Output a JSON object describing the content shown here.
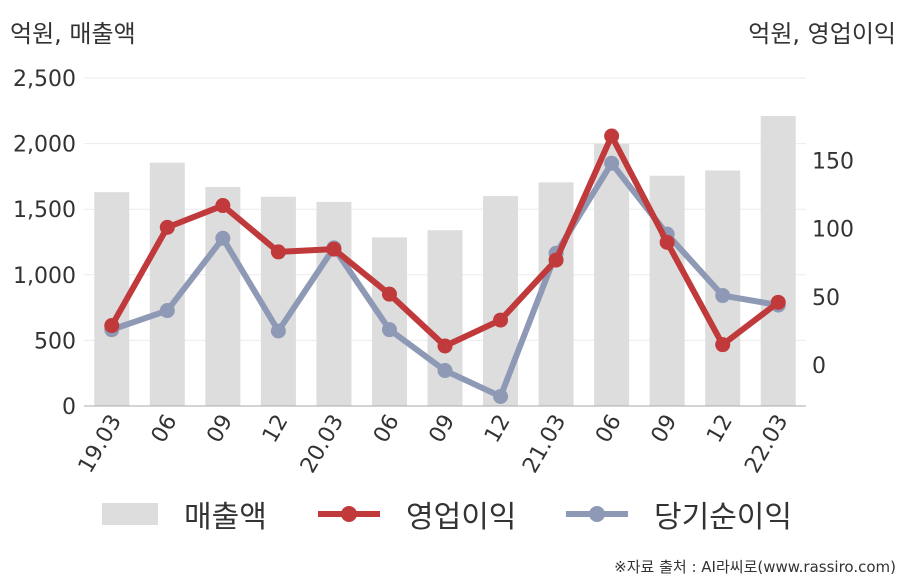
{
  "chart_data": {
    "type": "bar+line",
    "categories": [
      "19.03",
      "06",
      "09",
      "12",
      "20.03",
      "06",
      "09",
      "12",
      "21.03",
      "06",
      "09",
      "12",
      "22.03"
    ],
    "y_left": {
      "unit_label": "억원, 매출액",
      "ticks": [
        "0",
        "500",
        "1,000",
        "1,500",
        "2,000",
        "2,500"
      ],
      "range": [
        0,
        2500
      ]
    },
    "y_right": {
      "unit_label": "억원, 영업이익",
      "ticks": [
        "0",
        "50",
        "100",
        "150"
      ],
      "range": [
        -30,
        190
      ]
    },
    "series": [
      {
        "name": "매출액",
        "kind": "bar",
        "axis": "left",
        "color": "#dddddd",
        "values": [
          1630,
          1855,
          1670,
          1595,
          1555,
          1285,
          1340,
          1600,
          1705,
          2000,
          1755,
          1795,
          2210
        ]
      },
      {
        "name": "영업이익",
        "kind": "line",
        "axis": "right",
        "color": "#c0393b",
        "values": [
          29,
          101,
          117,
          83,
          85,
          52,
          14,
          33,
          77,
          168,
          90,
          15,
          46
        ]
      },
      {
        "name": "당기순이익",
        "kind": "line",
        "axis": "right",
        "color": "#8e9ab5",
        "values": [
          26,
          40,
          93,
          25,
          86,
          26,
          -4,
          -23,
          82,
          148,
          96,
          51,
          44
        ]
      }
    ],
    "grid": true,
    "legend_position": "bottom"
  },
  "source_note": "※자료 출처 : AI라씨로(www.rassiro.com)"
}
